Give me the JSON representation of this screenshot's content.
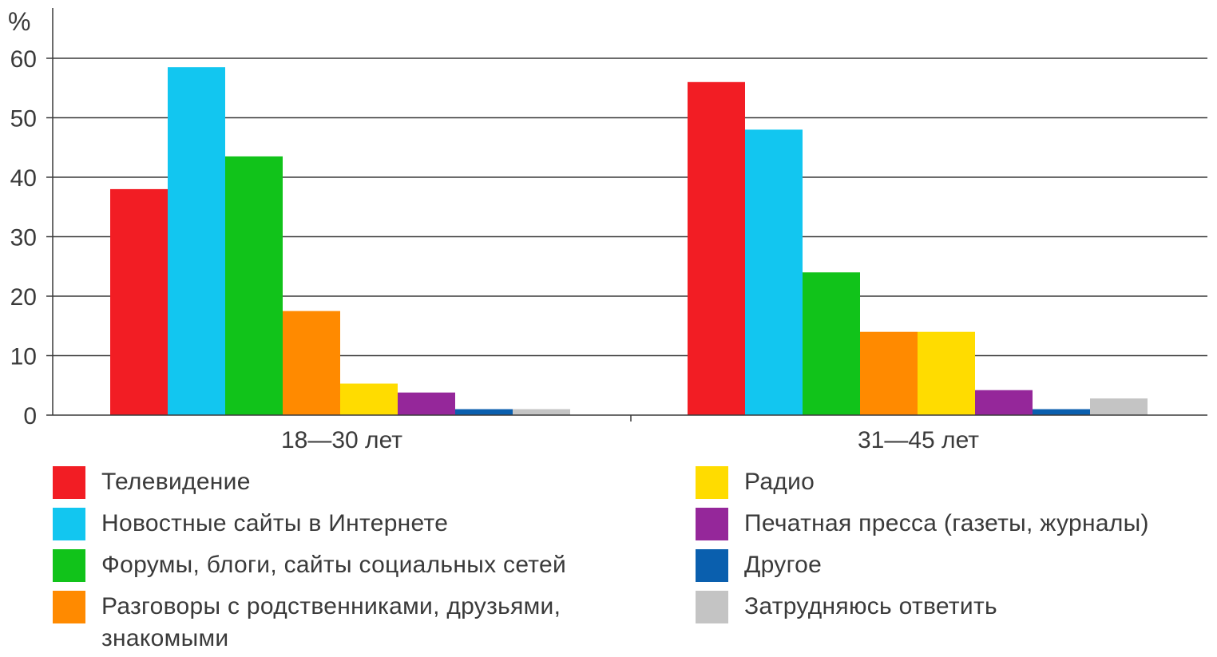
{
  "chart_data": {
    "type": "bar",
    "unit_label": "%",
    "ylim": [
      0,
      60
    ],
    "yticks": [
      "0",
      "10",
      "20",
      "30",
      "40",
      "50",
      "60"
    ],
    "grid": true,
    "categories": [
      "18—30 лет",
      "31—45 лет"
    ],
    "series": [
      {
        "name": "Телевидение",
        "color": "#f21d24",
        "values": [
          38,
          56
        ]
      },
      {
        "name": "Новостные сайты в Интернете",
        "color": "#12c6f0",
        "values": [
          58.5,
          48
        ]
      },
      {
        "name": "Форумы, блоги, сайты социальных сетей",
        "color": "#11c31a",
        "values": [
          43.5,
          24
        ]
      },
      {
        "name": "Разговоры с родственниками, друзьями, знакомыми",
        "color": "#ff8a00",
        "values": [
          17.5,
          14
        ]
      },
      {
        "name": "Радио",
        "color": "#ffdc00",
        "values": [
          5.3,
          14
        ]
      },
      {
        "name": "Печатная пресса (газеты, журналы)",
        "color": "#95279a",
        "values": [
          3.8,
          4.2
        ]
      },
      {
        "name": "Другое",
        "color": "#0a5fae",
        "values": [
          1,
          1
        ]
      },
      {
        "name": "Затрудняюсь ответить",
        "color": "#c4c4c4",
        "values": [
          1,
          2.8
        ]
      }
    ],
    "legend_placement": "bottom"
  }
}
